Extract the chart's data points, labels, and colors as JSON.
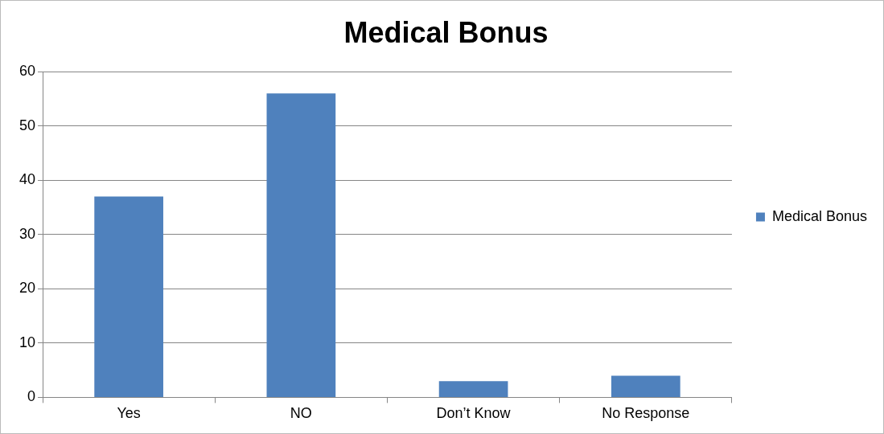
{
  "chart_data": {
    "type": "bar",
    "title": "Medical Bonus",
    "categories": [
      "Yes",
      "NO",
      "Don’t Know",
      "No Response"
    ],
    "series": [
      {
        "name": "Medical Bonus",
        "color": "#4f81bd",
        "values": [
          37,
          56,
          3,
          4
        ]
      }
    ],
    "ylim": [
      0,
      60
    ],
    "yticks": [
      0,
      10,
      20,
      30,
      40,
      50,
      60
    ],
    "grid": "y",
    "legend": "right"
  }
}
